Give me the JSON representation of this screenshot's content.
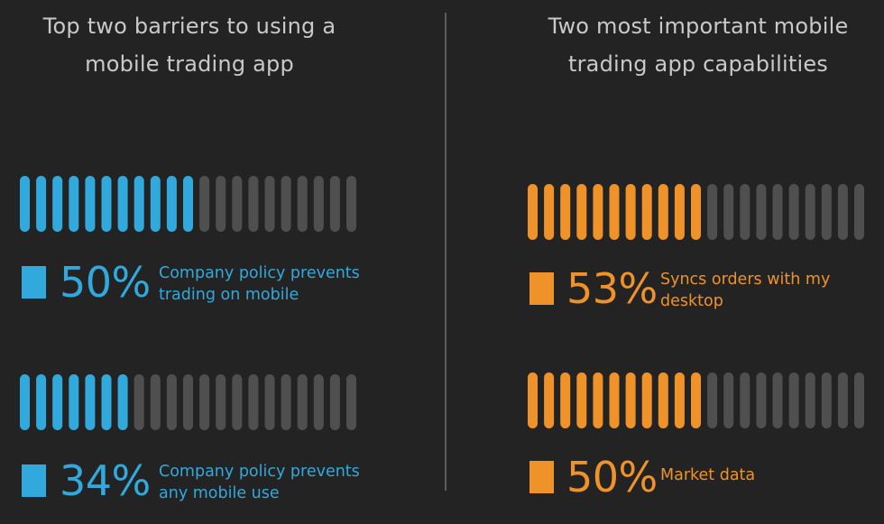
{
  "colors": {
    "background": "#232323",
    "inactive_bar": "#4f4f4f",
    "blue": "#31a9dd",
    "orange": "#f0922a",
    "title": "#c9c9c9"
  },
  "chart_data": [
    {
      "type": "bar",
      "title": "Top two barriers to using a mobile trading app",
      "color": "#31a9dd",
      "segments": 21,
      "items": [
        {
          "value": 50,
          "display": "50%",
          "label": "Company policy prevents trading on mobile"
        },
        {
          "value": 34,
          "display": "34%",
          "label": "Company policy prevents any mobile use"
        }
      ]
    },
    {
      "type": "bar",
      "title": "Two most important mobile trading app capabilities",
      "color": "#f0922a",
      "segments": 21,
      "items": [
        {
          "value": 53,
          "display": "53%",
          "label": "Syncs orders with my desktop"
        },
        {
          "value": 50,
          "display": "50%",
          "label": "Market data"
        }
      ]
    }
  ]
}
